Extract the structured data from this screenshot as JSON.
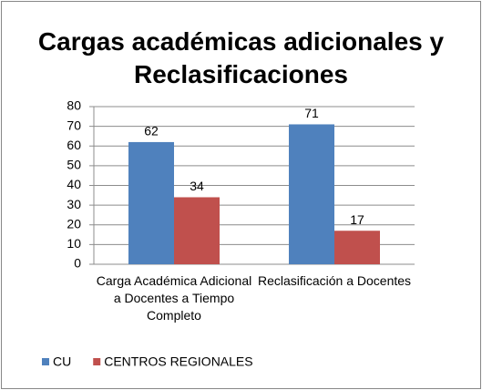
{
  "chart_data": {
    "type": "bar",
    "title": "Cargas académicas adicionales y Reclasificaciones",
    "categories": [
      "Carga Académica Adicional a Docentes a Tiempo Completo",
      "Reclasificación a Docentes"
    ],
    "series": [
      {
        "name": "CU",
        "color": "#4f81bd",
        "values": [
          62,
          71
        ]
      },
      {
        "name": "CENTROS REGIONALES",
        "color": "#c0504d",
        "values": [
          34,
          17
        ]
      }
    ],
    "ylim": [
      0,
      80
    ],
    "yticks": [
      0,
      10,
      20,
      30,
      40,
      50,
      60,
      70,
      80
    ],
    "grid": true,
    "legend": "bottom"
  }
}
